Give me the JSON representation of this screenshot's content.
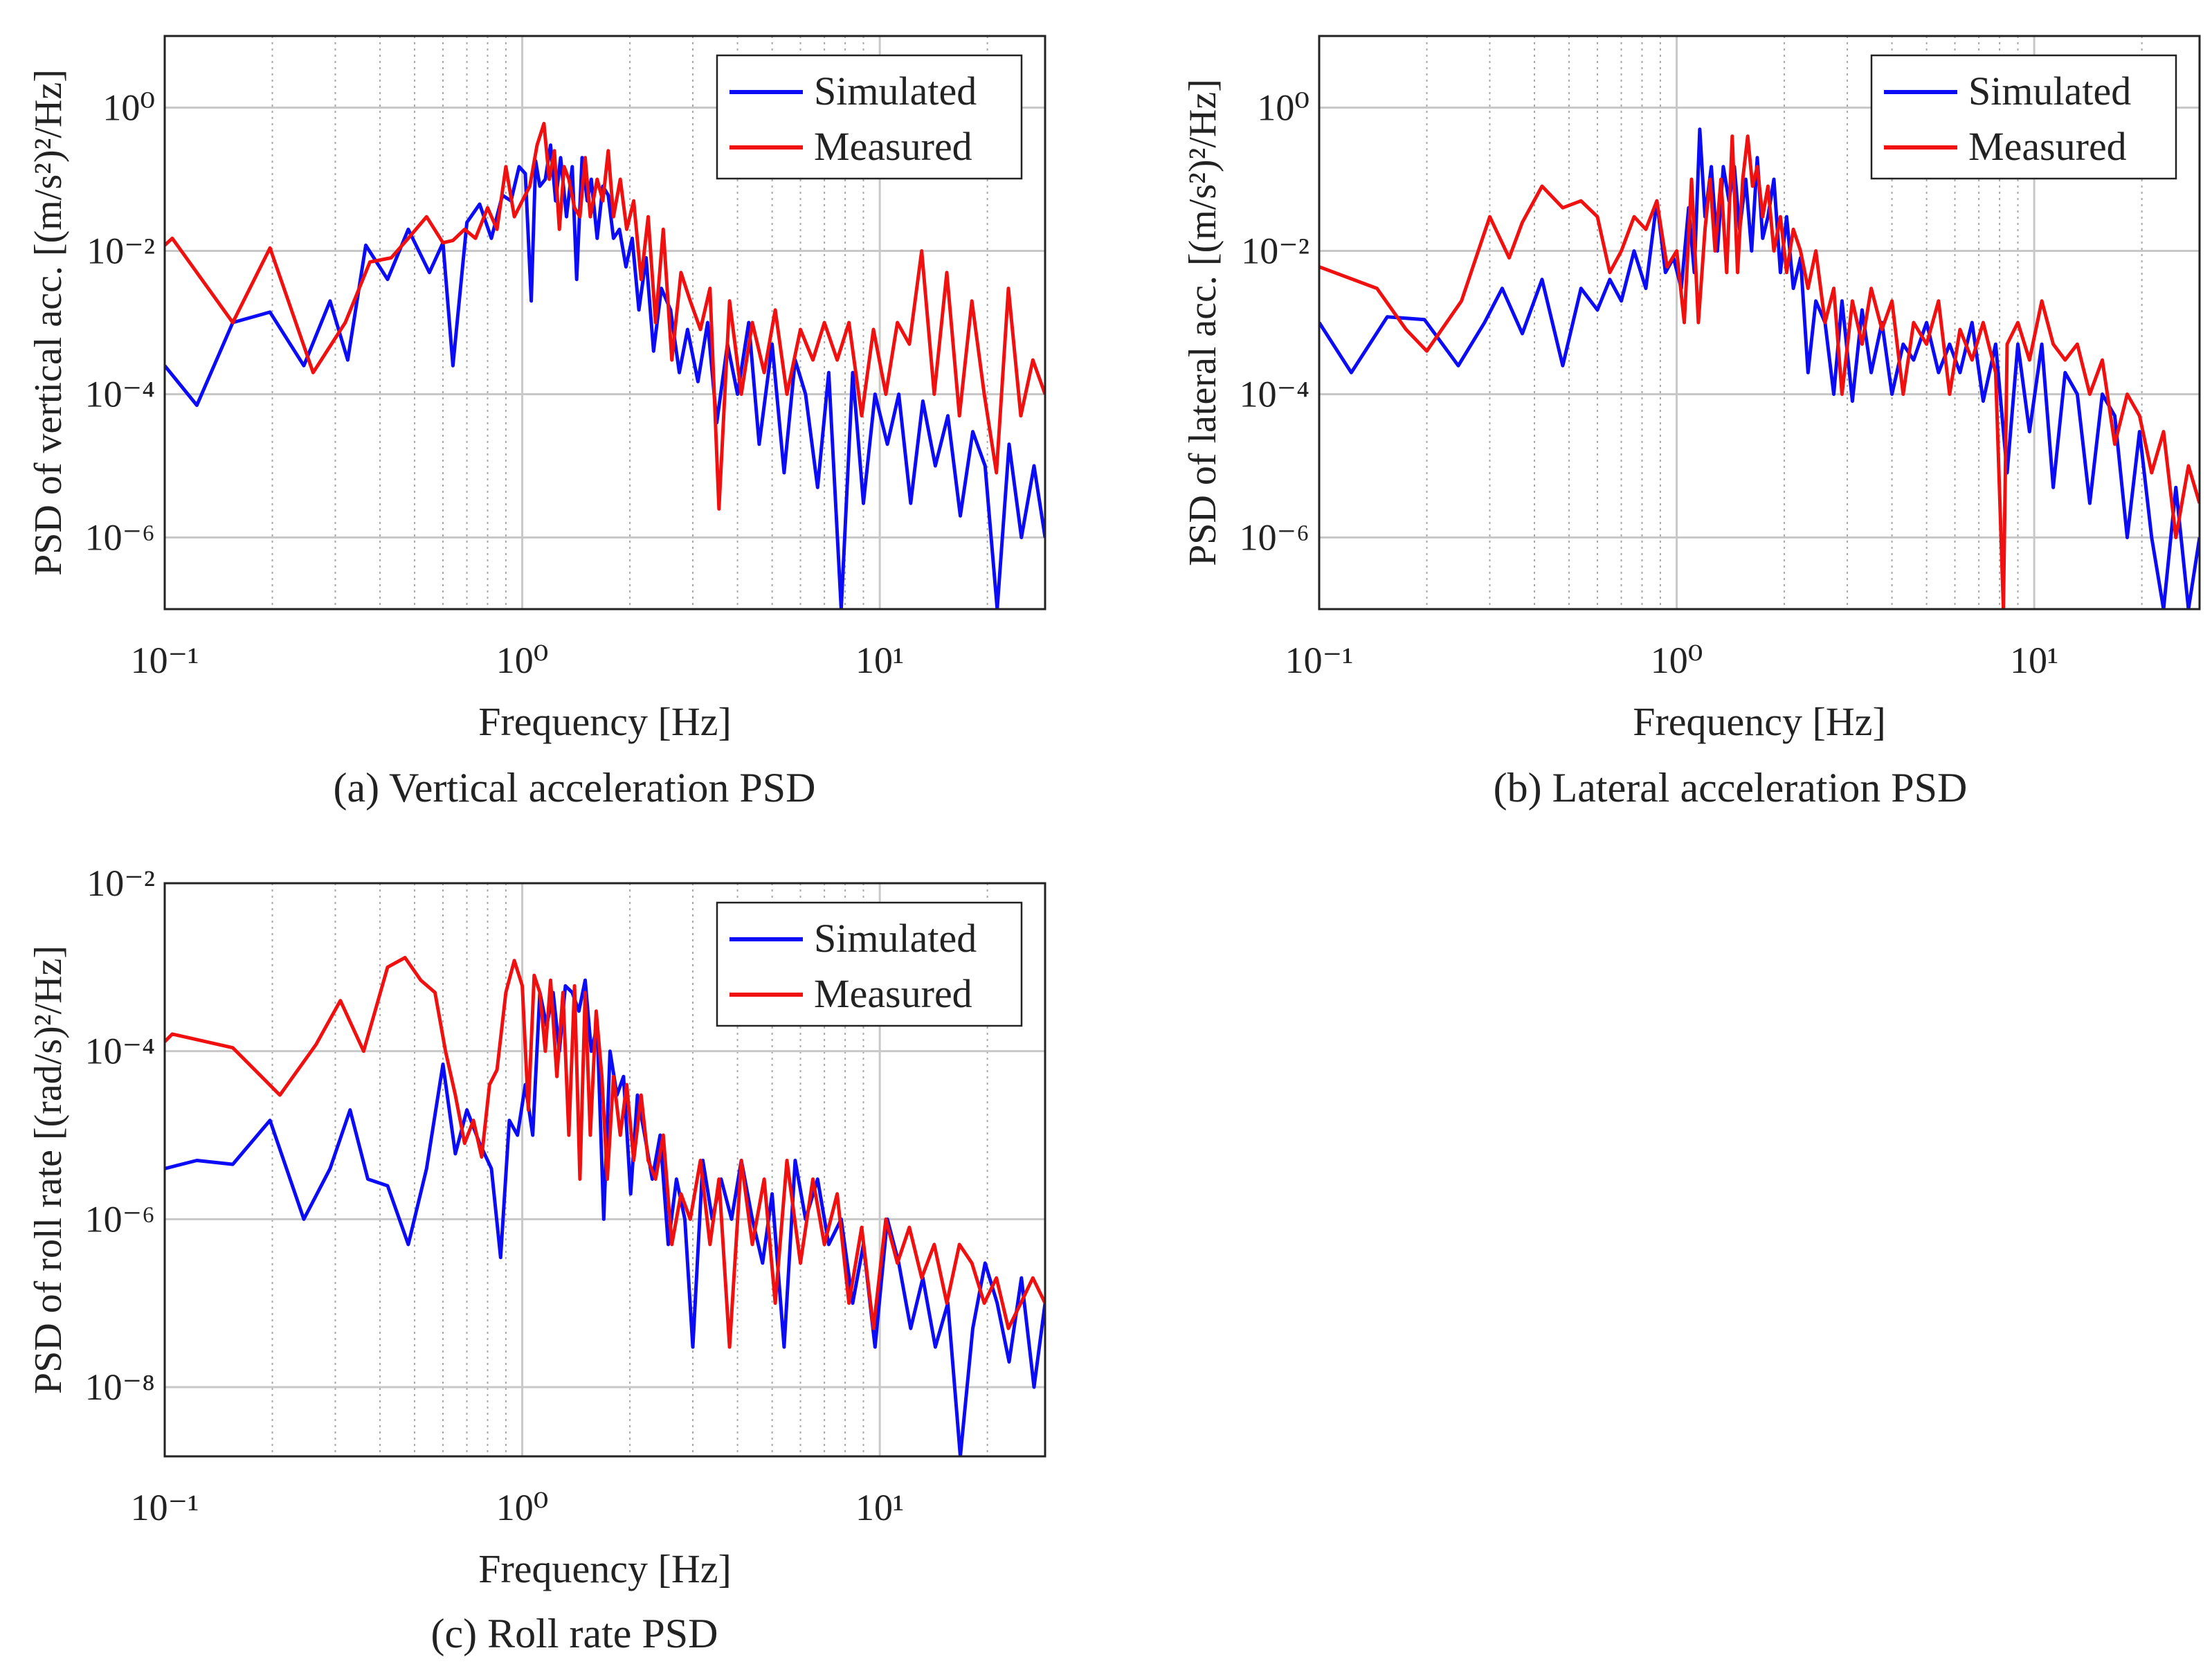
{
  "colors": {
    "simulated": "#0b0bf5",
    "measured": "#f01010",
    "grid": "#c8c8c8",
    "axis": "#222222"
  },
  "chart_data": [
    {
      "type": "line",
      "caption": "(a) Vertical acceleration PSD",
      "xlabel": "Frequency [Hz]",
      "ylabel": "PSD of vertical acc. [(m/s²)²/Hz]",
      "xscale": "log",
      "yscale": "log",
      "xlim": [
        0.1,
        29
      ],
      "ylim": [
        1e-07,
        10
      ],
      "xticks": [
        0.1,
        1,
        10
      ],
      "xticklabels": [
        "10⁻¹",
        "10⁰",
        "10¹"
      ],
      "yticks": [
        1e-06,
        0.0001,
        0.01,
        1
      ],
      "yticklabels": [
        "10⁻⁶",
        "10⁻⁴",
        "10⁻²",
        "10⁰"
      ],
      "grid": true,
      "legend_position": "top-right",
      "series": [
        {
          "name": "Simulated",
          "x": [
            0.1,
            0.123,
            0.155,
            0.197,
            0.245,
            0.29,
            0.325,
            0.365,
            0.42,
            0.48,
            0.55,
            0.6,
            0.64,
            0.7,
            0.76,
            0.82,
            0.88,
            0.93,
            0.98,
            1.02,
            1.06,
            1.09,
            1.12,
            1.16,
            1.2,
            1.24,
            1.28,
            1.33,
            1.38,
            1.42,
            1.47,
            1.52,
            1.56,
            1.62,
            1.68,
            1.74,
            1.8,
            1.87,
            1.95,
            2.03,
            2.12,
            2.22,
            2.33,
            2.45,
            2.6,
            2.75,
            2.9,
            3.1,
            3.3,
            3.5,
            3.75,
            4.0,
            4.3,
            4.6,
            5.0,
            5.4,
            5.8,
            6.2,
            6.7,
            7.2,
            7.8,
            8.4,
            9.0,
            9.7,
            10.5,
            11.3,
            12.2,
            13.2,
            14.3,
            15.5,
            16.8,
            18.2,
            19.7,
            21.3,
            23.0,
            24.9,
            27.0,
            29.0
          ],
          "values": [
            0.00025,
            7e-05,
            0.001,
            0.0014,
            0.00025,
            0.002,
            0.0003,
            0.012,
            0.004,
            0.02,
            0.005,
            0.013,
            0.00025,
            0.025,
            0.045,
            0.015,
            0.06,
            0.05,
            0.15,
            0.12,
            0.002,
            0.18,
            0.08,
            0.1,
            0.3,
            0.05,
            0.2,
            0.03,
            0.15,
            0.004,
            0.2,
            0.05,
            0.1,
            0.015,
            0.08,
            0.06,
            0.015,
            0.02,
            0.006,
            0.015,
            0.0015,
            0.008,
            0.0004,
            0.003,
            0.0015,
            0.0002,
            0.0008,
            0.00015,
            0.001,
            4e-05,
            0.0005,
            0.0001,
            0.001,
            2e-05,
            0.0005,
            8e-06,
            0.0003,
            0.0001,
            5e-06,
            0.0002,
            1e-07,
            0.0002,
            3e-06,
            0.0001,
            2e-05,
            0.0001,
            3e-06,
            8e-05,
            1e-05,
            5e-05,
            2e-06,
            3e-05,
            1e-05,
            1e-07,
            2e-05,
            1e-06,
            1e-05,
            1e-06
          ]
        },
        {
          "name": "Measured",
          "x": [
            0.1,
            0.105,
            0.155,
            0.197,
            0.26,
            0.32,
            0.375,
            0.43,
            0.48,
            0.54,
            0.6,
            0.64,
            0.69,
            0.74,
            0.8,
            0.85,
            0.9,
            0.95,
            1.0,
            1.05,
            1.1,
            1.15,
            1.19,
            1.23,
            1.27,
            1.31,
            1.35,
            1.4,
            1.45,
            1.5,
            1.55,
            1.62,
            1.68,
            1.74,
            1.8,
            1.88,
            1.96,
            2.05,
            2.15,
            2.25,
            2.36,
            2.48,
            2.62,
            2.78,
            2.95,
            3.15,
            3.35,
            3.55,
            3.8,
            4.1,
            4.4,
            4.75,
            5.1,
            5.5,
            6.0,
            6.5,
            7.0,
            7.6,
            8.2,
            8.9,
            9.6,
            10.4,
            11.2,
            12.1,
            13.1,
            14.2,
            15.4,
            16.7,
            18.1,
            19.6,
            21.2,
            22.9,
            24.8,
            26.8,
            29.0
          ],
          "values": [
            0.012,
            0.015,
            0.001,
            0.011,
            0.0002,
            0.001,
            0.007,
            0.008,
            0.015,
            0.03,
            0.013,
            0.014,
            0.02,
            0.015,
            0.04,
            0.02,
            0.15,
            0.03,
            0.05,
            0.08,
            0.3,
            0.6,
            0.1,
            0.25,
            0.02,
            0.15,
            0.1,
            0.04,
            0.03,
            0.2,
            0.03,
            0.1,
            0.05,
            0.25,
            0.03,
            0.1,
            0.02,
            0.05,
            0.004,
            0.03,
            0.001,
            0.02,
            0.0003,
            0.005,
            0.002,
            0.0008,
            0.003,
            2.5e-06,
            0.002,
            0.0001,
            0.001,
            0.0002,
            0.0015,
            0.0001,
            0.0008,
            0.0003,
            0.001,
            0.0003,
            0.001,
            5e-05,
            0.0008,
            0.0001,
            0.001,
            0.0005,
            0.01,
            0.0001,
            0.005,
            5e-05,
            0.002,
            0.0001,
            8e-06,
            0.003,
            5e-05,
            0.0003,
            0.0001
          ]
        }
      ]
    },
    {
      "type": "line",
      "caption": "(b) Lateral acceleration PSD",
      "xlabel": "Frequency [Hz]",
      "ylabel": "PSD of lateral acc. [(m/s²)²/Hz]",
      "xscale": "log",
      "yscale": "log",
      "xlim": [
        0.1,
        29
      ],
      "ylim": [
        1e-07,
        10
      ],
      "xticks": [
        0.1,
        1,
        10
      ],
      "xticklabels": [
        "10⁻¹",
        "10⁰",
        "10¹"
      ],
      "yticks": [
        1e-06,
        0.0001,
        0.01,
        1
      ],
      "yticklabels": [
        "10⁻⁶",
        "10⁻⁴",
        "10⁻²",
        "10⁰"
      ],
      "grid": true,
      "legend_position": "top-right",
      "series": [
        {
          "name": "Simulated",
          "x": [
            0.1,
            0.123,
            0.155,
            0.197,
            0.245,
            0.29,
            0.325,
            0.37,
            0.42,
            0.48,
            0.54,
            0.6,
            0.65,
            0.7,
            0.76,
            0.82,
            0.88,
            0.93,
            0.98,
            1.03,
            1.08,
            1.12,
            1.16,
            1.2,
            1.25,
            1.3,
            1.35,
            1.4,
            1.45,
            1.5,
            1.56,
            1.62,
            1.68,
            1.74,
            1.8,
            1.87,
            1.95,
            2.03,
            2.12,
            2.22,
            2.33,
            2.45,
            2.6,
            2.75,
            2.9,
            3.1,
            3.3,
            3.5,
            3.75,
            4.0,
            4.3,
            4.6,
            5.0,
            5.4,
            5.8,
            6.2,
            6.7,
            7.2,
            7.8,
            8.4,
            9.0,
            9.7,
            10.5,
            11.3,
            12.2,
            13.2,
            14.3,
            15.5,
            16.8,
            18.2,
            19.7,
            21.3,
            23.0,
            24.9,
            27.0,
            29.0
          ],
          "values": [
            0.001,
            0.0002,
            0.0012,
            0.0011,
            0.00025,
            0.001,
            0.003,
            0.0007,
            0.004,
            0.00025,
            0.003,
            0.0015,
            0.004,
            0.002,
            0.01,
            0.003,
            0.05,
            0.005,
            0.008,
            0.003,
            0.04,
            0.005,
            0.5,
            0.03,
            0.15,
            0.01,
            0.15,
            0.05,
            0.15,
            0.02,
            0.1,
            0.01,
            0.2,
            0.015,
            0.03,
            0.1,
            0.005,
            0.03,
            0.003,
            0.008,
            0.0002,
            0.002,
            0.001,
            0.0001,
            0.002,
            8e-05,
            0.0015,
            0.0002,
            0.001,
            0.0001,
            0.0005,
            0.0003,
            0.001,
            0.0002,
            0.0005,
            0.0002,
            0.001,
            8e-05,
            0.0005,
            8e-06,
            0.0005,
            3e-05,
            0.0005,
            5e-06,
            0.0002,
            0.0001,
            3e-06,
            0.0001,
            5e-05,
            1e-06,
            3e-05,
            1e-06,
            1e-07,
            5e-06,
            1e-07,
            1e-06
          ]
        },
        {
          "name": "Measured",
          "x": [
            0.1,
            0.145,
            0.175,
            0.2,
            0.25,
            0.3,
            0.34,
            0.37,
            0.42,
            0.48,
            0.54,
            0.6,
            0.65,
            0.7,
            0.76,
            0.82,
            0.88,
            0.94,
            1.0,
            1.05,
            1.1,
            1.15,
            1.2,
            1.24,
            1.28,
            1.33,
            1.38,
            1.43,
            1.48,
            1.53,
            1.58,
            1.63,
            1.68,
            1.74,
            1.8,
            1.87,
            1.95,
            2.03,
            2.12,
            2.22,
            2.33,
            2.45,
            2.6,
            2.75,
            2.9,
            3.1,
            3.3,
            3.5,
            3.75,
            4.0,
            4.3,
            4.6,
            5.0,
            5.4,
            5.8,
            6.2,
            6.7,
            7.2,
            7.8,
            8.2,
            8.4,
            9.0,
            9.7,
            10.5,
            11.3,
            12.2,
            13.2,
            14.3,
            15.5,
            16.8,
            18.2,
            19.7,
            21.3,
            23.0,
            24.9,
            27.0,
            29.0
          ],
          "values": [
            0.006,
            0.003,
            0.0008,
            0.0004,
            0.002,
            0.03,
            0.008,
            0.025,
            0.08,
            0.04,
            0.05,
            0.03,
            0.005,
            0.01,
            0.03,
            0.02,
            0.05,
            0.006,
            0.01,
            0.001,
            0.1,
            0.001,
            0.02,
            0.1,
            0.01,
            0.1,
            0.005,
            0.4,
            0.005,
            0.1,
            0.4,
            0.08,
            0.15,
            0.03,
            0.08,
            0.01,
            0.03,
            0.005,
            0.02,
            0.01,
            0.003,
            0.01,
            0.001,
            0.003,
            0.0001,
            0.002,
            0.0005,
            0.003,
            0.0008,
            0.002,
            0.0001,
            0.001,
            0.0005,
            0.002,
            0.0001,
            0.0008,
            0.0003,
            0.001,
            0.0002,
            1e-07,
            0.0005,
            0.001,
            0.0003,
            0.002,
            0.0005,
            0.0003,
            0.0005,
            0.0001,
            0.0003,
            2e-05,
            0.0001,
            5e-05,
            8e-06,
            3e-05,
            1e-06,
            1e-05,
            3e-06
          ]
        }
      ]
    },
    {
      "type": "line",
      "caption": "(c) Roll rate PSD",
      "xlabel": "Frequency [Hz]",
      "ylabel": "PSD of roll rate [(rad/s)²/Hz]",
      "xscale": "log",
      "yscale": "log",
      "xlim": [
        0.1,
        29
      ],
      "ylim": [
        1.5e-09,
        0.01
      ],
      "xticks": [
        0.1,
        1,
        10
      ],
      "xticklabels": [
        "10⁻¹",
        "10⁰",
        "10¹"
      ],
      "yticks": [
        1e-08,
        1e-06,
        0.0001,
        0.01
      ],
      "yticklabels": [
        "10⁻⁸",
        "10⁻⁶",
        "10⁻⁴",
        "10⁻²"
      ],
      "grid": true,
      "legend_position": "top-right",
      "series": [
        {
          "name": "Simulated",
          "x": [
            0.1,
            0.123,
            0.155,
            0.197,
            0.245,
            0.29,
            0.33,
            0.37,
            0.42,
            0.48,
            0.54,
            0.6,
            0.65,
            0.7,
            0.76,
            0.82,
            0.87,
            0.92,
            0.97,
            1.02,
            1.07,
            1.12,
            1.17,
            1.22,
            1.27,
            1.32,
            1.38,
            1.44,
            1.5,
            1.56,
            1.62,
            1.69,
            1.76,
            1.84,
            1.92,
            2.01,
            2.1,
            2.2,
            2.31,
            2.43,
            2.56,
            2.7,
            2.85,
            3.0,
            3.2,
            3.4,
            3.6,
            3.85,
            4.1,
            4.4,
            4.7,
            5.0,
            5.4,
            5.8,
            6.2,
            6.7,
            7.2,
            7.8,
            8.4,
            9.0,
            9.7,
            10.5,
            11.3,
            12.2,
            13.2,
            14.3,
            15.5,
            16.8,
            18.2,
            19.7,
            21.3,
            23.0,
            24.9,
            27.0,
            29.0
          ],
          "values": [
            4e-06,
            5e-06,
            4.5e-06,
            1.5e-05,
            1e-06,
            4e-06,
            2e-05,
            3e-06,
            2.5e-06,
            5e-07,
            4e-06,
            7e-05,
            6e-06,
            2e-05,
            8e-06,
            4e-06,
            3.5e-07,
            1.5e-05,
            1e-05,
            4e-05,
            1e-05,
            0.0005,
            0.0002,
            0.0005,
            0.0001,
            0.0006,
            0.0005,
            0.0003,
            0.0007,
            0.0001,
            0.0002,
            1e-06,
            0.0001,
            3e-05,
            5e-05,
            2e-06,
            3e-05,
            1e-05,
            3e-06,
            1e-05,
            5e-07,
            3e-06,
            1e-06,
            3e-08,
            5e-06,
            1e-06,
            3e-06,
            1e-06,
            5e-06,
            1e-06,
            3e-07,
            2e-06,
            3e-08,
            5e-06,
            1e-06,
            3e-06,
            5e-07,
            1e-06,
            1e-07,
            5e-07,
            3e-08,
            1e-06,
            3e-07,
            5e-08,
            2e-07,
            3e-08,
            1e-07,
            1.5e-09,
            5e-08,
            3e-07,
            1e-07,
            2e-08,
            2e-07,
            1e-08,
            1e-07
          ]
        },
        {
          "name": "Measured",
          "x": [
            0.1,
            0.105,
            0.155,
            0.21,
            0.265,
            0.31,
            0.36,
            0.42,
            0.47,
            0.52,
            0.57,
            0.61,
            0.65,
            0.69,
            0.73,
            0.77,
            0.81,
            0.85,
            0.9,
            0.95,
            1.0,
            1.04,
            1.08,
            1.12,
            1.16,
            1.2,
            1.25,
            1.3,
            1.35,
            1.4,
            1.45,
            1.5,
            1.55,
            1.61,
            1.67,
            1.73,
            1.8,
            1.88,
            1.96,
            2.05,
            2.15,
            2.25,
            2.36,
            2.48,
            2.62,
            2.78,
            2.95,
            3.15,
            3.35,
            3.55,
            3.8,
            4.1,
            4.4,
            4.75,
            5.1,
            5.5,
            6.0,
            6.5,
            7.0,
            7.6,
            8.2,
            8.9,
            9.6,
            10.4,
            11.2,
            12.1,
            13.1,
            14.2,
            15.4,
            16.7,
            18.1,
            19.6,
            21.2,
            22.9,
            24.8,
            26.8,
            29.0
          ],
          "values": [
            0.00013,
            0.00016,
            0.00011,
            3e-05,
            0.00012,
            0.0004,
            0.0001,
            0.001,
            0.0013,
            0.0007,
            0.0005,
            0.0001,
            3e-05,
            8e-06,
            1.5e-05,
            5.5e-06,
            4e-05,
            6e-05,
            0.0005,
            0.0012,
            0.0006,
            2e-05,
            0.0008,
            0.0005,
            0.0001,
            0.0007,
            5e-05,
            0.0005,
            1e-05,
            0.0006,
            3e-06,
            0.0005,
            1e-05,
            0.0003,
            5e-05,
            3e-06,
            5e-05,
            1e-05,
            4e-05,
            5e-06,
            3e-05,
            5e-06,
            3e-06,
            1e-05,
            5e-07,
            2e-06,
            1e-06,
            5e-06,
            5e-07,
            3e-06,
            3e-08,
            5e-06,
            5e-07,
            3e-06,
            1e-07,
            5e-06,
            3e-07,
            3e-06,
            5e-07,
            2e-06,
            1e-07,
            8e-07,
            5e-08,
            1e-06,
            3e-07,
            8e-07,
            2e-07,
            5e-07,
            1e-07,
            5e-07,
            3e-07,
            1e-07,
            2e-07,
            5e-08,
            1e-07,
            2e-07,
            1e-07
          ]
        }
      ]
    }
  ]
}
